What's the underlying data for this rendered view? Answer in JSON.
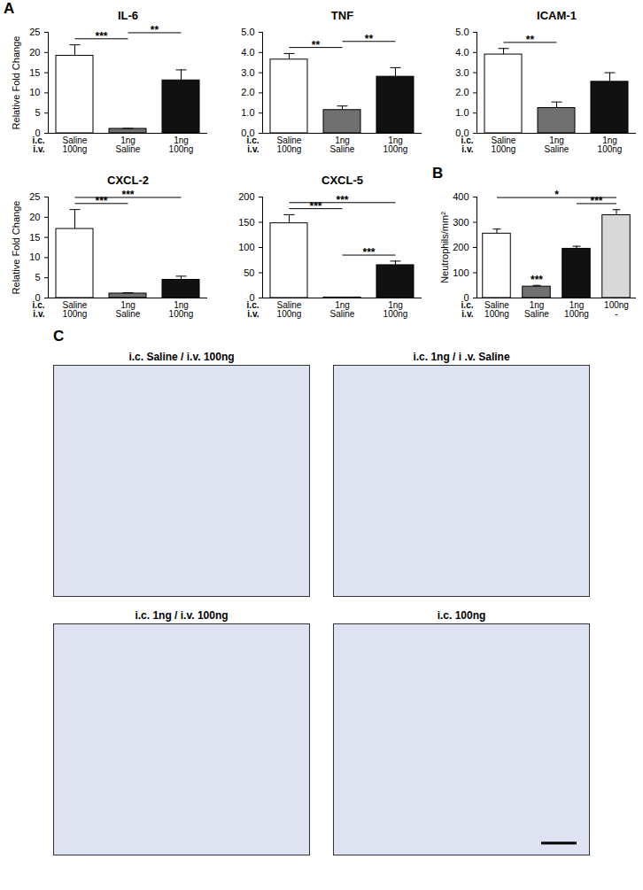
{
  "panel_labels": [
    "A",
    "B",
    "C"
  ],
  "chart_data": [
    {
      "type": "bar",
      "title": "IL-6",
      "y_label": "Relative Fold Change",
      "category_rows": [
        {
          "label": "i.c.",
          "values": [
            "Saline",
            "1ng",
            "1ng"
          ]
        },
        {
          "label": "i.v.",
          "values": [
            "100ng",
            "Saline",
            "100ng"
          ]
        }
      ],
      "values": [
        19.2,
        1.1,
        13.1
      ],
      "errors": [
        2.7,
        0.1,
        2.6
      ],
      "colors": [
        "#ffffff",
        "#707070",
        "#111111"
      ],
      "ylim": [
        0,
        25
      ],
      "yticks": [
        0,
        5,
        10,
        15,
        20,
        25
      ],
      "significance": [
        {
          "from": 0,
          "to": 1,
          "label": "***"
        },
        {
          "from": 1,
          "to": 2,
          "label": "**"
        }
      ]
    },
    {
      "type": "bar",
      "title": "TNF",
      "category_rows": [
        {
          "label": "i.c.",
          "values": [
            "Saline",
            "1ng",
            "1ng"
          ]
        },
        {
          "label": "i.v.",
          "values": [
            "100ng",
            "Saline",
            "100ng"
          ]
        }
      ],
      "values": [
        3.65,
        1.15,
        2.8
      ],
      "errors": [
        0.3,
        0.2,
        0.45
      ],
      "colors": [
        "#ffffff",
        "#707070",
        "#111111"
      ],
      "ylim": [
        0,
        5
      ],
      "yticks": [
        0,
        1,
        2,
        3,
        4,
        5
      ],
      "significance": [
        {
          "from": 0,
          "to": 1,
          "label": "**"
        },
        {
          "from": 1,
          "to": 2,
          "label": "**"
        }
      ]
    },
    {
      "type": "bar",
      "title": "ICAM-1",
      "category_rows": [
        {
          "label": "i.c.",
          "values": [
            "Saline",
            "1ng",
            "1ng"
          ]
        },
        {
          "label": "i.v.",
          "values": [
            "100ng",
            "Saline",
            "100ng"
          ]
        }
      ],
      "values": [
        3.9,
        1.25,
        2.55
      ],
      "errors": [
        0.3,
        0.3,
        0.45
      ],
      "colors": [
        "#ffffff",
        "#707070",
        "#111111"
      ],
      "ylim": [
        0,
        5
      ],
      "yticks": [
        0,
        1,
        2,
        3,
        4,
        5
      ],
      "significance": [
        {
          "from": 0,
          "to": 1,
          "label": "**"
        }
      ]
    },
    {
      "type": "bar",
      "title": "CXCL-2",
      "y_label": "Relative Fold Change",
      "category_rows": [
        {
          "label": "i.c.",
          "values": [
            "Saline",
            "1ng",
            "1ng"
          ]
        },
        {
          "label": "i.v.",
          "values": [
            "100ng",
            "Saline",
            "100ng"
          ]
        }
      ],
      "values": [
        17.1,
        1.1,
        4.5
      ],
      "errors": [
        4.8,
        0.2,
        0.9
      ],
      "colors": [
        "#ffffff",
        "#707070",
        "#111111"
      ],
      "ylim": [
        0,
        25
      ],
      "yticks": [
        0,
        5,
        10,
        15,
        20,
        25
      ],
      "significance": [
        {
          "from": 0,
          "to": 1,
          "label": "***"
        },
        {
          "from": 0,
          "to": 2,
          "label": "***"
        }
      ]
    },
    {
      "type": "bar",
      "title": "CXCL-5",
      "category_rows": [
        {
          "label": "i.c.",
          "values": [
            "Saline",
            "1ng",
            "1ng"
          ]
        },
        {
          "label": "i.v.",
          "values": [
            "100ng",
            "Saline",
            "100ng"
          ]
        }
      ],
      "values": [
        148,
        1,
        65
      ],
      "errors": [
        17,
        0.5,
        8
      ],
      "colors": [
        "#ffffff",
        "#707070",
        "#111111"
      ],
      "ylim": [
        0,
        200
      ],
      "yticks": [
        0,
        50,
        100,
        150,
        200
      ],
      "significance": [
        {
          "from": 1,
          "to": 2,
          "label": "***"
        },
        {
          "from": 0,
          "to": 1,
          "label": "***"
        },
        {
          "from": 0,
          "to": 2,
          "label": "***"
        }
      ]
    },
    {
      "type": "bar",
      "y_label": "Neutrophils/mm²",
      "category_rows": [
        {
          "label": "i.c.",
          "values": [
            "Saline",
            "1ng",
            "1ng",
            "100ng"
          ]
        },
        {
          "label": "i.v.",
          "values": [
            "100ng",
            "Saline",
            "100ng",
            "-"
          ]
        }
      ],
      "values": [
        255,
        45,
        195,
        328
      ],
      "errors": [
        18,
        5,
        10,
        22
      ],
      "colors": [
        "#ffffff",
        "#707070",
        "#111111",
        "#d8d8d8"
      ],
      "ylim": [
        0,
        400
      ],
      "yticks": [
        0,
        100,
        200,
        300,
        400
      ],
      "significance": [
        {
          "at": 1,
          "label": "***"
        },
        {
          "from": 2,
          "to": 3,
          "label": "***"
        },
        {
          "from": 0,
          "to": 3,
          "label": "*"
        }
      ]
    }
  ],
  "images": {
    "titles": [
      "i.c. Saline / i.v. 100ng",
      "i.c. 1ng / i .v. Saline",
      "i.c. 1ng / i.v. 100ng",
      "i.c. 100ng"
    ]
  }
}
